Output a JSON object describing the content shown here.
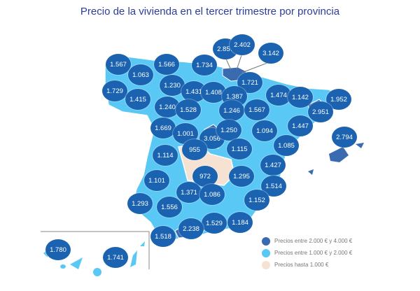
{
  "title": "Precio de la vivienda en el tercer trimestre por provincia",
  "colors": {
    "high": "#3a6ab0",
    "mid": "#5ac8f5",
    "low": "#f6e2d3",
    "bubble": "#1b63b0"
  },
  "legend": [
    {
      "label": "Precios entre 2.000 € y 4.000 €",
      "category": "high"
    },
    {
      "label": "Precios entre 1.000 € y 2.000 €",
      "category": "mid"
    },
    {
      "label": "Precios hasta 1.000 €",
      "category": "low"
    }
  ],
  "provinces": [
    {
      "value": "1.567"
    },
    {
      "value": "1.063"
    },
    {
      "value": "1.566"
    },
    {
      "value": "1.734"
    },
    {
      "value": "2.857"
    },
    {
      "value": "2.402"
    },
    {
      "value": "3.142"
    },
    {
      "value": "1.721"
    },
    {
      "value": "1.729"
    },
    {
      "value": "1.415"
    },
    {
      "value": "1.230"
    },
    {
      "value": "1.431"
    },
    {
      "value": "1.408"
    },
    {
      "value": "1.387"
    },
    {
      "value": "1.474"
    },
    {
      "value": "1.142"
    },
    {
      "value": "1.952"
    },
    {
      "value": "2.951"
    },
    {
      "value": "1.240"
    },
    {
      "value": "1.528"
    },
    {
      "value": "1.246"
    },
    {
      "value": "1.567"
    },
    {
      "value": "1.447"
    },
    {
      "value": "1.669"
    },
    {
      "value": "1.001"
    },
    {
      "value": "3.056"
    },
    {
      "value": "1.250"
    },
    {
      "value": "1.094"
    },
    {
      "value": "2.794"
    },
    {
      "value": "955"
    },
    {
      "value": "1.115"
    },
    {
      "value": "1.085"
    },
    {
      "value": "1.114"
    },
    {
      "value": "972"
    },
    {
      "value": "1.295"
    },
    {
      "value": "1.427"
    },
    {
      "value": "1.101"
    },
    {
      "value": "1.371"
    },
    {
      "value": "1.086"
    },
    {
      "value": "1.514"
    },
    {
      "value": "1.152"
    },
    {
      "value": "1.293"
    },
    {
      "value": "1.556"
    },
    {
      "value": "1.529"
    },
    {
      "value": "1.184"
    },
    {
      "value": "2.238"
    },
    {
      "value": "1.518"
    },
    {
      "value": "1.780"
    },
    {
      "value": "1.741"
    }
  ]
}
